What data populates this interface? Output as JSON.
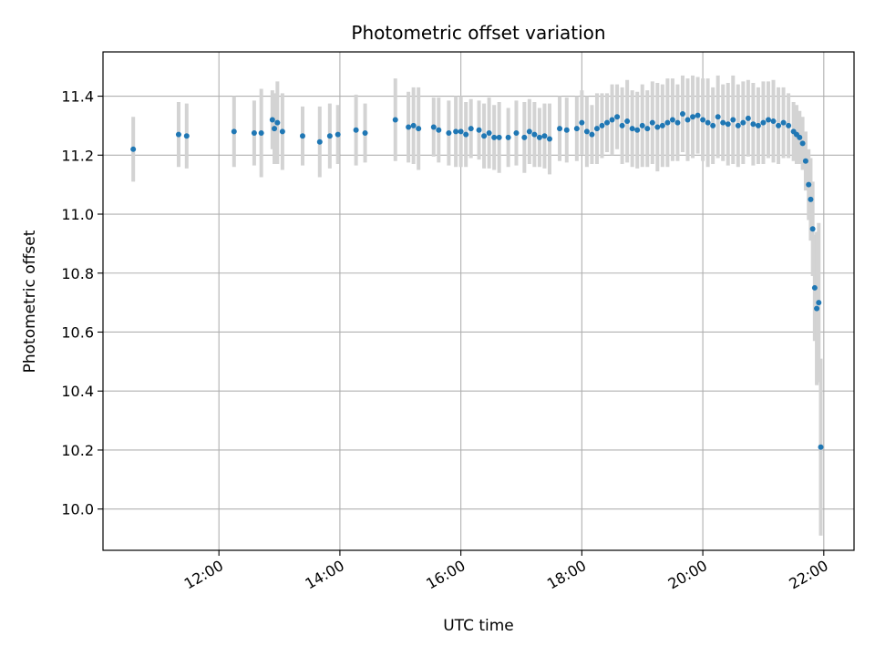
{
  "chart_data": {
    "type": "scatter",
    "title": "Photometric offset variation",
    "xlabel": "UTC time",
    "ylabel": "Photometric offset",
    "xlim": [
      "10:05",
      "22:30"
    ],
    "ylim": [
      9.86,
      11.55
    ],
    "xticks": [
      "12:00",
      "14:00",
      "16:00",
      "18:00",
      "20:00",
      "22:00"
    ],
    "yticks": [
      10.0,
      10.2,
      10.4,
      10.6,
      10.8,
      11.0,
      11.2,
      11.4
    ],
    "grid": true,
    "marker_color": "#1f77b4",
    "errorbar_color": "#d3d3d3",
    "series": [
      {
        "x": [
          "10:35",
          "11:20",
          "11:28",
          "12:15",
          "12:35",
          "12:42",
          "12:53",
          "12:55",
          "12:58",
          "13:03",
          "13:23",
          "13:40",
          "13:50",
          "13:58",
          "14:16",
          "14:25",
          "14:55",
          "15:08",
          "15:13",
          "15:18",
          "15:33",
          "15:38",
          "15:48",
          "15:55",
          "16:00",
          "16:05",
          "16:10",
          "16:18",
          "16:23",
          "16:28",
          "16:33",
          "16:38",
          "16:47",
          "16:55",
          "17:03",
          "17:08",
          "17:13",
          "17:18",
          "17:23",
          "17:28",
          "17:38",
          "17:45",
          "17:55",
          "18:00",
          "18:05",
          "18:10",
          "18:15",
          "18:20",
          "18:25",
          "18:30",
          "18:35",
          "18:40",
          "18:45",
          "18:50",
          "18:55",
          "19:00",
          "19:05",
          "19:10",
          "19:15",
          "19:20",
          "19:25",
          "19:30",
          "19:35",
          "19:40",
          "19:45",
          "19:50",
          "19:55",
          "20:00",
          "20:05",
          "20:10",
          "20:15",
          "20:20",
          "20:25",
          "20:30",
          "20:35",
          "20:40",
          "20:45",
          "20:50",
          "20:55",
          "21:00",
          "21:05",
          "21:10",
          "21:15",
          "21:20",
          "21:25",
          "21:30",
          "21:33",
          "21:36",
          "21:39",
          "21:42",
          "21:45",
          "21:47",
          "21:49",
          "21:51",
          "21:53",
          "21:55",
          "21:57"
        ],
        "y": [
          11.22,
          11.27,
          11.265,
          11.28,
          11.275,
          11.275,
          11.32,
          11.29,
          11.31,
          11.28,
          11.265,
          11.245,
          11.265,
          11.27,
          11.285,
          11.275,
          11.32,
          11.295,
          11.3,
          11.29,
          11.295,
          11.285,
          11.275,
          11.28,
          11.28,
          11.27,
          11.29,
          11.285,
          11.265,
          11.275,
          11.26,
          11.26,
          11.26,
          11.275,
          11.26,
          11.28,
          11.27,
          11.26,
          11.265,
          11.255,
          11.29,
          11.285,
          11.29,
          11.31,
          11.28,
          11.27,
          11.29,
          11.3,
          11.31,
          11.32,
          11.33,
          11.3,
          11.315,
          11.29,
          11.285,
          11.3,
          11.29,
          11.31,
          11.295,
          11.3,
          11.31,
          11.32,
          11.31,
          11.34,
          11.32,
          11.33,
          11.335,
          11.32,
          11.31,
          11.3,
          11.33,
          11.31,
          11.305,
          11.32,
          11.3,
          11.31,
          11.325,
          11.305,
          11.3,
          11.31,
          11.32,
          11.315,
          11.3,
          11.31,
          11.3,
          11.28,
          11.27,
          11.26,
          11.24,
          11.18,
          11.1,
          11.05,
          10.95,
          10.75,
          10.68,
          10.7,
          10.21
        ],
        "yerr": [
          0.11,
          0.11,
          0.11,
          0.12,
          0.11,
          0.15,
          0.1,
          0.12,
          0.14,
          0.13,
          0.1,
          0.12,
          0.11,
          0.1,
          0.12,
          0.1,
          0.14,
          0.12,
          0.13,
          0.14,
          0.1,
          0.11,
          0.11,
          0.12,
          0.12,
          0.11,
          0.1,
          0.1,
          0.11,
          0.12,
          0.11,
          0.12,
          0.1,
          0.11,
          0.12,
          0.11,
          0.11,
          0.1,
          0.11,
          0.12,
          0.11,
          0.11,
          0.11,
          0.11,
          0.12,
          0.1,
          0.12,
          0.11,
          0.1,
          0.12,
          0.11,
          0.13,
          0.14,
          0.13,
          0.13,
          0.14,
          0.13,
          0.14,
          0.15,
          0.14,
          0.15,
          0.14,
          0.13,
          0.13,
          0.14,
          0.14,
          0.13,
          0.14,
          0.15,
          0.13,
          0.14,
          0.13,
          0.14,
          0.15,
          0.14,
          0.14,
          0.13,
          0.14,
          0.13,
          0.14,
          0.13,
          0.14,
          0.13,
          0.12,
          0.11,
          0.1,
          0.1,
          0.09,
          0.09,
          0.1,
          0.12,
          0.14,
          0.16,
          0.18,
          0.26,
          0.27,
          0.3
        ]
      }
    ]
  }
}
